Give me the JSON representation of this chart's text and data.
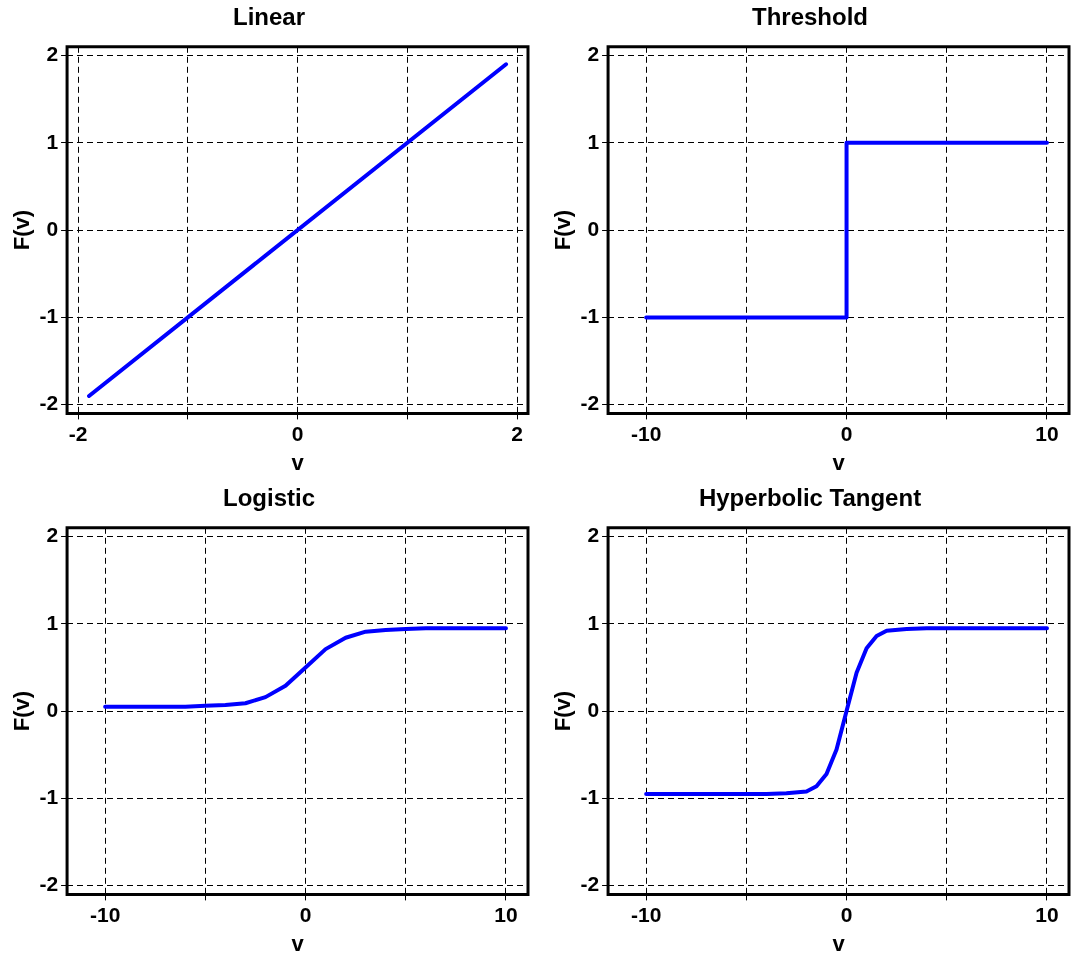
{
  "chart_data": [
    {
      "type": "line",
      "title": "Linear",
      "xlabel": "v",
      "ylabel": "F(v)",
      "x": [
        -1.9,
        1.9
      ],
      "values": [
        -1.9,
        1.9
      ],
      "color": "#0000ff",
      "xlim": [
        -2.1,
        2.1
      ],
      "ylim": [
        -2.1,
        2.1
      ],
      "xticks": [
        -2,
        {
          "value": -1,
          "label": null
        },
        0,
        {
          "value": 1,
          "label": null
        },
        2
      ],
      "yticks": [
        -2,
        -1,
        0,
        1,
        2
      ],
      "grid": true
    },
    {
      "type": "step",
      "title": "Threshold",
      "xlabel": "v",
      "ylabel": "F(v)",
      "x": [
        -10,
        0,
        10
      ],
      "values": [
        -1,
        1,
        1
      ],
      "color": "#0000ff",
      "xlim": [
        -11.9,
        11.1
      ],
      "ylim": [
        -2.1,
        2.1
      ],
      "xticks": [
        -10,
        {
          "value": -5,
          "label": null
        },
        0,
        {
          "value": 5,
          "label": null
        },
        10
      ],
      "yticks": [
        -2,
        -1,
        0,
        1,
        2
      ],
      "grid": true
    },
    {
      "type": "line",
      "title": "Logistic",
      "xlabel": "v",
      "ylabel": "F(v)",
      "x": [
        -10,
        -9,
        -8,
        -7,
        -6,
        -5,
        -4,
        -3,
        -2,
        -1,
        0,
        1,
        2,
        3,
        4,
        5,
        6,
        7,
        8,
        9,
        10
      ],
      "values": [
        0.05,
        0.05,
        0.05,
        0.05,
        0.05,
        0.06,
        0.07,
        0.09,
        0.16,
        0.29,
        0.5,
        0.71,
        0.84,
        0.91,
        0.93,
        0.94,
        0.95,
        0.95,
        0.95,
        0.95,
        0.95
      ],
      "color": "#0000ff",
      "xlim": [
        -11.9,
        11.1
      ],
      "ylim": [
        -2.1,
        2.1
      ],
      "xticks": [
        -10,
        {
          "value": -5,
          "label": null
        },
        0,
        {
          "value": 5,
          "label": null
        },
        10
      ],
      "yticks": [
        -2,
        -1,
        0,
        1,
        2
      ],
      "grid": true
    },
    {
      "type": "line",
      "title": "Hyperbolic Tangent",
      "xlabel": "v",
      "ylabel": "F(v)",
      "x": [
        -10,
        -8,
        -6,
        -4,
        -3,
        -2,
        -1.5,
        -1,
        -0.5,
        0,
        0.5,
        1,
        1.5,
        2,
        3,
        4,
        6,
        8,
        10
      ],
      "values": [
        -0.95,
        -0.95,
        -0.95,
        -0.95,
        -0.94,
        -0.92,
        -0.86,
        -0.72,
        -0.44,
        0,
        0.44,
        0.72,
        0.86,
        0.92,
        0.94,
        0.95,
        0.95,
        0.95,
        0.95
      ],
      "color": "#0000ff",
      "xlim": [
        -11.9,
        11.1
      ],
      "ylim": [
        -2.1,
        2.1
      ],
      "xticks": [
        -10,
        {
          "value": -5,
          "label": null
        },
        0,
        {
          "value": 5,
          "label": null
        },
        10
      ],
      "yticks": [
        -2,
        -1,
        0,
        1,
        2
      ],
      "grid": true
    }
  ]
}
